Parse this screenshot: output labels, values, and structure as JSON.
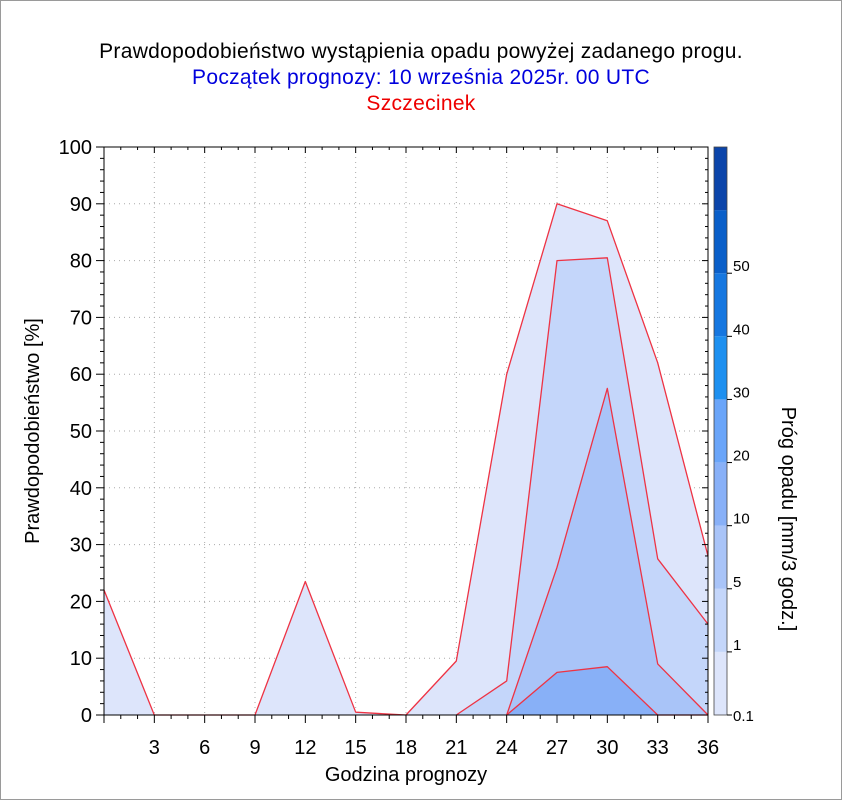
{
  "colors": {
    "band_0_1": "#dde5fb",
    "band_1": "#c4d6fa",
    "band_5": "#a9c4f8",
    "band_10": "#88b0f7",
    "band_20": "#6aa5f9",
    "band_30": "#1e90f0",
    "band_40": "#1677e0",
    "band_50": "#0a5fc9",
    "band_top": "#0b45aa",
    "outline": "#ee3344",
    "grid": "#aaaaaa"
  },
  "chart_data": {
    "type": "area",
    "title": "Prawdopodobieństwo wystąpienia opadu powyżej zadanego progu.",
    "subtitle": "Początek prognozy: 10 września 2025r. 00 UTC",
    "location": "Szczecinek",
    "xlabel": "Godzina prognozy",
    "ylabel": "Prawdopodobieństwo [%]",
    "colorbar_label": "Próg opadu [mm/3 godz.]",
    "xlim": [
      0,
      36
    ],
    "ylim": [
      0,
      100
    ],
    "x_ticks": [
      "3",
      "6",
      "9",
      "12",
      "15",
      "18",
      "21",
      "24",
      "27",
      "30",
      "33",
      "36"
    ],
    "y_ticks": [
      "0",
      "10",
      "20",
      "30",
      "40",
      "50",
      "60",
      "70",
      "80",
      "90",
      "100"
    ],
    "colorbar_ticks": [
      "0.1",
      "1",
      "5",
      "10",
      "20",
      "30",
      "40",
      "50"
    ],
    "grid": true,
    "series": [
      {
        "name": "0.1",
        "color_key": "band_0_1",
        "x": [
          0,
          3,
          6,
          9,
          12,
          15,
          18,
          21,
          24,
          27,
          30,
          33,
          36
        ],
        "values": [
          22,
          0,
          0,
          0,
          23.5,
          0.5,
          0,
          9.5,
          60,
          90,
          87,
          62,
          28
        ]
      },
      {
        "name": "1",
        "color_key": "band_1",
        "x": [
          21,
          24,
          27,
          30,
          33,
          36
        ],
        "values": [
          0,
          6,
          80,
          80.5,
          27.5,
          16
        ]
      },
      {
        "name": "5",
        "color_key": "band_5",
        "x": [
          24,
          27,
          30,
          33,
          36
        ],
        "values": [
          0,
          26,
          57.5,
          9,
          0
        ]
      },
      {
        "name": "10",
        "color_key": "band_10",
        "x": [
          24,
          27,
          30,
          33,
          36
        ],
        "values": [
          0,
          7.5,
          8.5,
          0,
          0
        ]
      }
    ]
  }
}
